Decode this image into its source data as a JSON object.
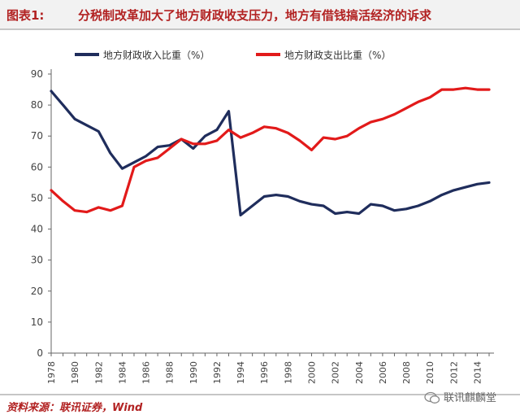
{
  "header": {
    "figure_label": "图表1:",
    "title": "分税制改革加大了地方财政收支压力，地方有借钱搞活经济的诉求"
  },
  "footer": {
    "source": "资料来源：联讯证券，Wind",
    "watermark": "联讯麒麟堂"
  },
  "colors": {
    "revenue": "#1f2d5c",
    "expenditure": "#e21a1a",
    "title": "#b22222"
  },
  "icons": {
    "watermark": "wechat-icon"
  },
  "chart_data": {
    "type": "line",
    "x": [
      1978,
      1979,
      1980,
      1981,
      1982,
      1983,
      1984,
      1985,
      1986,
      1987,
      1988,
      1989,
      1990,
      1991,
      1992,
      1993,
      1994,
      1995,
      1996,
      1997,
      1998,
      1999,
      2000,
      2001,
      2002,
      2003,
      2004,
      2005,
      2006,
      2007,
      2008,
      2009,
      2010,
      2011,
      2012,
      2013,
      2014,
      2015
    ],
    "series": [
      {
        "name": "地方财政收入比重（%）",
        "values": [
          84.5,
          80.0,
          75.5,
          73.5,
          71.5,
          64.5,
          59.5,
          61.5,
          63.5,
          66.5,
          67.0,
          69.0,
          66.0,
          70.0,
          72.0,
          78.0,
          44.5,
          47.5,
          50.5,
          51.0,
          50.5,
          49.0,
          48.0,
          47.5,
          45.0,
          45.5,
          45.0,
          48.0,
          47.5,
          46.0,
          46.5,
          47.5,
          49.0,
          51.0,
          52.5,
          53.5,
          54.5,
          55.0
        ]
      },
      {
        "name": "地方财政支出比重（%）",
        "values": [
          52.5,
          49.0,
          46.0,
          45.5,
          47.0,
          46.0,
          47.5,
          60.0,
          62.0,
          63.0,
          66.0,
          69.0,
          67.5,
          67.5,
          68.5,
          72.0,
          69.5,
          71.0,
          73.0,
          72.5,
          71.0,
          68.5,
          65.5,
          69.5,
          69.0,
          70.0,
          72.5,
          74.5,
          75.5,
          77.0,
          79.0,
          81.0,
          82.5,
          85.0,
          85.0,
          85.5,
          85.0,
          85.0
        ]
      }
    ],
    "x_tick_labels": [
      "1978",
      "1980",
      "1982",
      "1984",
      "1986",
      "1988",
      "1990",
      "1992",
      "1994",
      "1996",
      "1998",
      "2000",
      "2002",
      "2004",
      "2006",
      "2008",
      "2010",
      "2012",
      "2014"
    ],
    "y_ticks": [
      0,
      10,
      20,
      30,
      40,
      50,
      60,
      70,
      80,
      90
    ],
    "xlim": [
      1978,
      2015
    ],
    "ylim": [
      0,
      90
    ],
    "grid": false,
    "legend": "top"
  }
}
